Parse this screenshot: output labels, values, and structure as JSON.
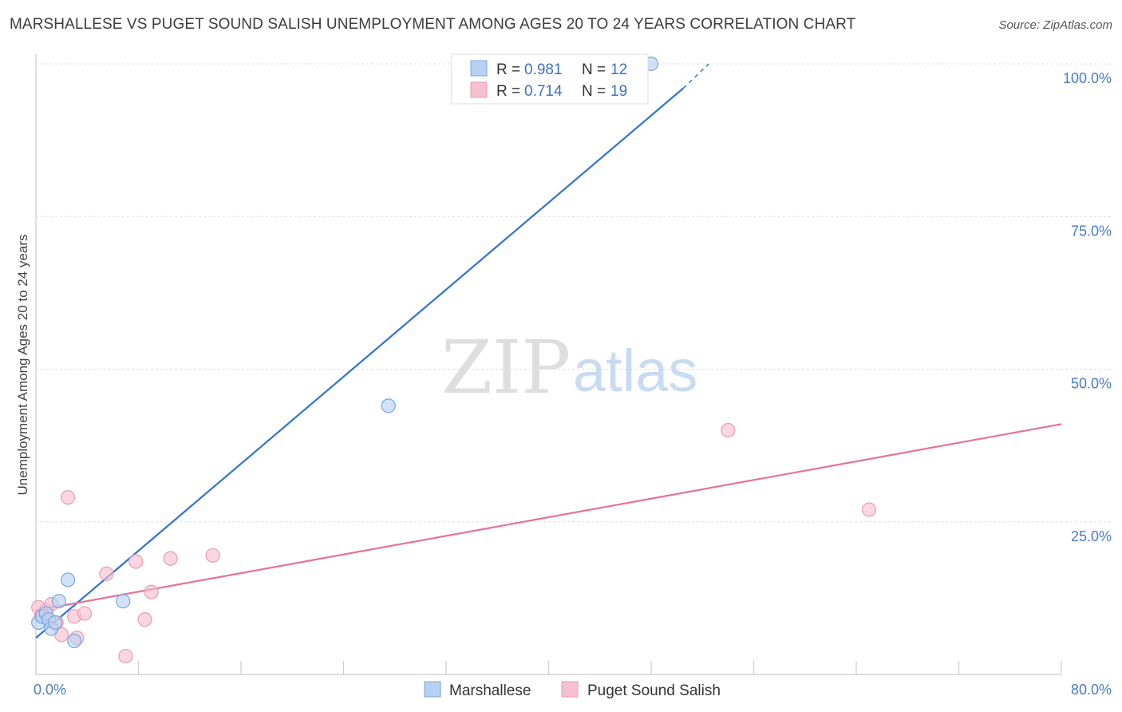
{
  "title": "MARSHALLESE VS PUGET SOUND SALISH UNEMPLOYMENT AMONG AGES 20 TO 24 YEARS CORRELATION CHART",
  "source": "Source: ZipAtlas.com",
  "watermark": {
    "zip": "ZIP",
    "atlas": "atlas"
  },
  "legend": {
    "rows": [
      {
        "r_label": "R = ",
        "r_value": "0.981",
        "n_label": "N = ",
        "n_value": "12"
      },
      {
        "r_label": "R = ",
        "r_value": "0.714",
        "n_label": "N = ",
        "n_value": "19"
      }
    ]
  },
  "colors": {
    "blue_fill": "#b8d1f3",
    "blue_stroke": "#7aa6df",
    "blue_line": "#2f74d0",
    "pink_fill": "#f6c0d0",
    "pink_stroke": "#eb9db5",
    "pink_line": "#e5729a",
    "grid": "#dddddd",
    "axis_text": "#4a7cc4"
  },
  "chart_data": {
    "type": "scatter",
    "title": "MARSHALLESE VS PUGET SOUND SALISH UNEMPLOYMENT AMONG AGES 20 TO 24 YEARS CORRELATION CHART",
    "xlabel": "",
    "ylabel": "Unemployment Among Ages 20 to 24 years",
    "xlim": [
      0,
      80
    ],
    "ylim": [
      0,
      100
    ],
    "x_tick_labels": [
      "0.0%",
      "80.0%"
    ],
    "y_ticks": [
      25,
      50,
      75,
      100
    ],
    "y_tick_labels": [
      "25.0%",
      "50.0%",
      "75.0%",
      "100.0%"
    ],
    "series": [
      {
        "name": "Marshallese",
        "points": [
          [
            0.2,
            8.5
          ],
          [
            0.5,
            9.5
          ],
          [
            0.8,
            10.0
          ],
          [
            1.0,
            9.0
          ],
          [
            1.2,
            7.5
          ],
          [
            1.5,
            8.5
          ],
          [
            1.8,
            12.0
          ],
          [
            2.5,
            15.5
          ],
          [
            3.0,
            5.5
          ],
          [
            6.8,
            12.0
          ],
          [
            27.5,
            44.0
          ],
          [
            48.0,
            100.0
          ]
        ],
        "trend": {
          "x1": 0,
          "y1": 6.0,
          "x2": 50.5,
          "y2": 96.0,
          "dash_x2": 52.5,
          "dash_y2": 100.0
        }
      },
      {
        "name": "Puget Sound Salish",
        "points": [
          [
            0.2,
            11.0
          ],
          [
            0.4,
            9.5
          ],
          [
            0.8,
            10.5
          ],
          [
            1.2,
            11.5
          ],
          [
            1.6,
            8.5
          ],
          [
            2.0,
            6.5
          ],
          [
            2.5,
            29.0
          ],
          [
            3.0,
            9.5
          ],
          [
            3.2,
            6.0
          ],
          [
            3.8,
            10.0
          ],
          [
            5.5,
            16.5
          ],
          [
            7.0,
            3.0
          ],
          [
            7.8,
            18.5
          ],
          [
            8.5,
            9.0
          ],
          [
            9.0,
            13.5
          ],
          [
            10.5,
            19.0
          ],
          [
            13.8,
            19.5
          ],
          [
            54.0,
            40.0
          ],
          [
            65.0,
            27.0
          ]
        ],
        "trend": {
          "x1": 0,
          "y1": 10.5,
          "x2": 80.0,
          "y2": 41.0
        }
      }
    ],
    "legend_position": "top-center",
    "bottom_legend": [
      "Marshallese",
      "Puget Sound Salish"
    ]
  }
}
